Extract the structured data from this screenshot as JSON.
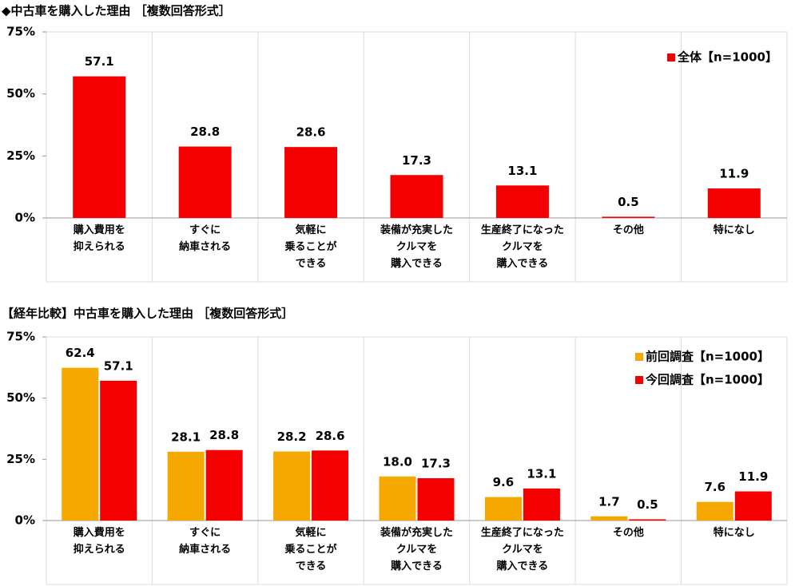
{
  "chart_data": [
    {
      "type": "bar",
      "title": "◆中古車を購入した理由 ［複数回答形式］",
      "categories": [
        "購入費用を\n抑えられる",
        "すぐに\n納車される",
        "気軽に\n乗ることが\nできる",
        "装備が充実した\nクルマを\n購入できる",
        "生産終了になった\nクルマを\n購入できる",
        "その他",
        "特になし"
      ],
      "series": [
        {
          "name": "全体【n=1000】",
          "color": "#f40000",
          "values": [
            57.1,
            28.8,
            28.6,
            17.3,
            13.1,
            0.5,
            11.9
          ]
        }
      ],
      "ylim": [
        0,
        75
      ],
      "yticks": [
        {
          "value": 0,
          "label": "0%"
        },
        {
          "value": 25,
          "label": "25%"
        },
        {
          "value": 50,
          "label": "50%"
        },
        {
          "value": 75,
          "label": "75%"
        }
      ],
      "legend": "upper right"
    },
    {
      "type": "bar",
      "title": "【経年比較】中古車を購入した理由 ［複数回答形式］",
      "categories": [
        "購入費用を\n抑えられる",
        "すぐに\n納車される",
        "気軽に\n乗ることが\nできる",
        "装備が充実した\nクルマを\n購入できる",
        "生産終了になった\nクルマを\n購入できる",
        "その他",
        "特になし"
      ],
      "series": [
        {
          "name": "前回調査【n=1000】",
          "color": "#f5a800",
          "values": [
            62.4,
            28.1,
            28.2,
            18,
            9.6,
            1.7,
            7.6
          ],
          "value_labels": [
            "62.4",
            "28.1",
            "28.2",
            "18.0",
            "9.6",
            "1.7",
            "7.6"
          ]
        },
        {
          "name": "今回調査【n=1000】",
          "color": "#f40000",
          "values": [
            57.1,
            28.8,
            28.6,
            17.3,
            13.1,
            0.5,
            11.9
          ]
        }
      ],
      "ylim": [
        0,
        75
      ],
      "yticks": [
        {
          "value": 0,
          "label": "0%"
        },
        {
          "value": 25,
          "label": "25%"
        },
        {
          "value": 50,
          "label": "50%"
        },
        {
          "value": 75,
          "label": "75%"
        }
      ],
      "legend": "upper right"
    }
  ]
}
